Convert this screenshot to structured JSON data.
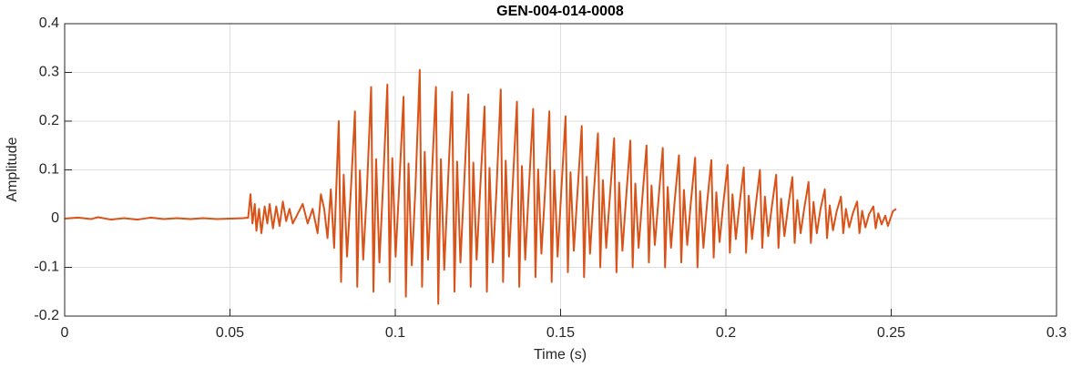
{
  "chart_data": {
    "type": "line",
    "title": "GEN-004-014-0008",
    "x_label": "Time (s)",
    "y_label": "Amplitude",
    "color": "#D95319",
    "grid": true,
    "xlim": [
      0,
      0.3
    ],
    "xticks": [
      0,
      0.05,
      0.1,
      0.15,
      0.2,
      0.25,
      0.3
    ],
    "ylim": [
      -0.2,
      0.4
    ],
    "yticks": [
      -0.2,
      -0.1,
      0,
      0.1,
      0.2,
      0.3,
      0.4
    ],
    "x": [
      0,
      0.004,
      0.008,
      0.01,
      0.014,
      0.018,
      0.022,
      0.026,
      0.03,
      0.034,
      0.038,
      0.042,
      0.046,
      0.05,
      0.054,
      0.0555,
      0.0562,
      0.0568,
      0.0575,
      0.058,
      0.0588,
      0.0595,
      0.0605,
      0.0613,
      0.062,
      0.063,
      0.064,
      0.065,
      0.066,
      0.067,
      0.068,
      0.069,
      0.0705,
      0.072,
      0.0735,
      0.075,
      0.0765,
      0.0775,
      0.0785,
      0.0795,
      0.0805,
      0.0815,
      0.0829,
      0.0836,
      0.0844,
      0.0854,
      0.0865,
      0.0878,
      0.0885,
      0.0893,
      0.0903,
      0.0914,
      0.0927,
      0.0934,
      0.0942,
      0.0952,
      0.0963,
      0.0976,
      0.0983,
      0.0991,
      0.1001,
      0.1012,
      0.1025,
      0.1032,
      0.104,
      0.105,
      0.1061,
      0.1074,
      0.1081,
      0.1089,
      0.1099,
      0.111,
      0.1123,
      0.113,
      0.1138,
      0.1148,
      0.1159,
      0.1172,
      0.1179,
      0.1187,
      0.1197,
      0.1208,
      0.1221,
      0.1228,
      0.1236,
      0.1246,
      0.1257,
      0.127,
      0.1277,
      0.1285,
      0.1295,
      0.1306,
      0.1319,
      0.1326,
      0.1334,
      0.1344,
      0.1355,
      0.1368,
      0.1375,
      0.1383,
      0.1393,
      0.1404,
      0.1417,
      0.1424,
      0.1432,
      0.1442,
      0.1453,
      0.1466,
      0.1473,
      0.1481,
      0.1491,
      0.1502,
      0.1515,
      0.1522,
      0.153,
      0.154,
      0.1551,
      0.1564,
      0.1571,
      0.1579,
      0.1589,
      0.16,
      0.1613,
      0.162,
      0.1628,
      0.1638,
      0.1649,
      0.1662,
      0.1669,
      0.1677,
      0.1687,
      0.1698,
      0.1711,
      0.1718,
      0.1726,
      0.1736,
      0.1747,
      0.176,
      0.1767,
      0.1775,
      0.1785,
      0.1796,
      0.1809,
      0.1816,
      0.1824,
      0.1834,
      0.1845,
      0.1858,
      0.1865,
      0.1873,
      0.1883,
      0.1894,
      0.1907,
      0.1914,
      0.1922,
      0.1932,
      0.1943,
      0.1956,
      0.1963,
      0.1971,
      0.1981,
      0.1992,
      0.2005,
      0.2012,
      0.202,
      0.203,
      0.2041,
      0.2054,
      0.2061,
      0.2069,
      0.2079,
      0.209,
      0.2103,
      0.211,
      0.2118,
      0.2128,
      0.2139,
      0.2152,
      0.2159,
      0.2167,
      0.2177,
      0.2188,
      0.2201,
      0.2208,
      0.2216,
      0.2226,
      0.2237,
      0.225,
      0.2257,
      0.2265,
      0.2275,
      0.2286,
      0.2299,
      0.2306,
      0.2314,
      0.2324,
      0.2335,
      0.2348,
      0.2355,
      0.2363,
      0.2373,
      0.2384,
      0.2397,
      0.2404,
      0.2412,
      0.2422,
      0.2433,
      0.2446,
      0.2453,
      0.2461,
      0.2471,
      0.2482,
      0.249,
      0.2505,
      0.2515
    ],
    "values": [
      0,
      0.002,
      -0.001,
      0.003,
      -0.002,
      0.001,
      -0.002,
      0.002,
      -0.001,
      0.001,
      -0.001,
      0.001,
      -0.001,
      0,
      0.001,
      0.002,
      0.05,
      -0.01,
      0.03,
      -0.025,
      0.02,
      -0.03,
      0.025,
      -0.01,
      0.03,
      -0.02,
      0.025,
      -0.015,
      0.035,
      -0.005,
      0.02,
      -0.01,
      0.01,
      0.03,
      -0.01,
      0.02,
      -0.03,
      0.05,
      0.02,
      -0.04,
      0.06,
      -0.06,
      0.2,
      -0.13,
      0.09,
      -0.078,
      0.05,
      0.22,
      -0.14,
      0.099,
      -0.084,
      0.055,
      0.27,
      -0.15,
      0.122,
      -0.09,
      0.068,
      0.275,
      -0.13,
      0.124,
      -0.078,
      0.069,
      0.25,
      -0.16,
      0.113,
      -0.096,
      0.063,
      0.305,
      -0.14,
      0.137,
      -0.084,
      0.076,
      0.27,
      -0.175,
      0.122,
      -0.105,
      0.068,
      0.26,
      -0.15,
      0.117,
      -0.09,
      0.065,
      0.255,
      -0.14,
      0.115,
      -0.084,
      0.064,
      0.23,
      -0.15,
      0.104,
      -0.09,
      0.058,
      0.265,
      -0.13,
      0.119,
      -0.078,
      0.066,
      0.24,
      -0.14,
      0.108,
      -0.084,
      0.06,
      0.225,
      -0.12,
      0.101,
      -0.072,
      0.056,
      0.22,
      -0.13,
      0.099,
      -0.078,
      0.055,
      0.21,
      -0.11,
      0.095,
      -0.066,
      0.053,
      0.19,
      -0.12,
      0.086,
      -0.072,
      0.048,
      0.175,
      -0.1,
      0.079,
      -0.06,
      0.044,
      0.165,
      -0.11,
      0.074,
      -0.066,
      0.041,
      0.16,
      -0.1,
      0.072,
      -0.06,
      0.04,
      0.15,
      -0.09,
      0.068,
      -0.054,
      0.038,
      0.145,
      -0.1,
      0.065,
      -0.06,
      0.036,
      0.13,
      -0.09,
      0.059,
      -0.054,
      0.033,
      0.125,
      -0.1,
      0.056,
      -0.06,
      0.031,
      0.12,
      -0.08,
      0.054,
      -0.048,
      0.03,
      0.11,
      -0.07,
      0.05,
      -0.042,
      0.028,
      0.105,
      -0.07,
      0.047,
      -0.042,
      0.026,
      0.1,
      -0.06,
      0.045,
      -0.036,
      0.025,
      0.09,
      -0.06,
      0.041,
      -0.036,
      0.023,
      0.085,
      -0.05,
      0.038,
      -0.03,
      0.021,
      0.075,
      -0.05,
      0.034,
      -0.03,
      0.019,
      0.06,
      -0.04,
      0.027,
      -0.024,
      0.015,
      0.045,
      -0.03,
      0.02,
      -0.018,
      0.011,
      0.035,
      -0.03,
      0.016,
      -0.018,
      0.009,
      0.025,
      -0.02,
      0.011,
      -0.012,
      0.006,
      -0.015,
      0.015,
      0.02
    ]
  }
}
